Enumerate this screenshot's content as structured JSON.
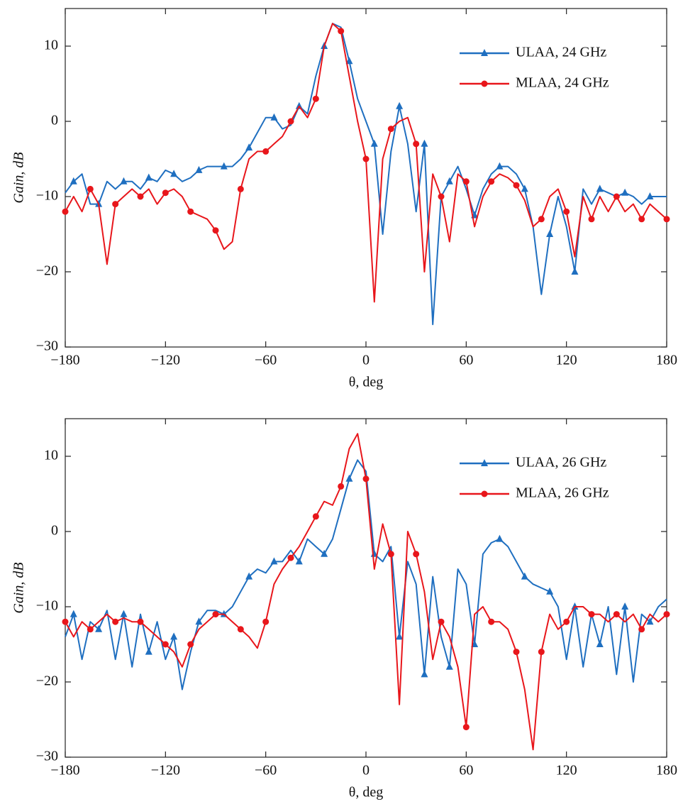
{
  "chart_data": [
    {
      "type": "line",
      "xlabel": "θ, deg",
      "ylabel": "Gain, dB",
      "legend": "upper right",
      "xlim": [
        -180,
        180
      ],
      "ylim": [
        -30,
        15
      ],
      "xticks": [
        {
          "value": -180,
          "label": "−180"
        },
        {
          "value": -120,
          "label": "−120"
        },
        {
          "value": -60,
          "label": "−60"
        },
        0,
        60,
        120,
        180
      ],
      "yticks": [
        {
          "value": -30,
          "label": "−30"
        },
        {
          "value": -20,
          "label": "−20"
        },
        {
          "value": -10,
          "label": "−10"
        },
        0,
        10
      ],
      "x": [
        -180,
        -175,
        -170,
        -165,
        -160,
        -155,
        -150,
        -145,
        -140,
        -135,
        -130,
        -125,
        -120,
        -115,
        -110,
        -105,
        -100,
        -95,
        -90,
        -85,
        -80,
        -75,
        -70,
        -65,
        -60,
        -55,
        -50,
        -45,
        -40,
        -35,
        -30,
        -25,
        -20,
        -15,
        -10,
        -5,
        0,
        5,
        10,
        15,
        20,
        25,
        30,
        35,
        40,
        45,
        50,
        55,
        60,
        65,
        70,
        75,
        80,
        85,
        90,
        95,
        100,
        105,
        110,
        115,
        120,
        125,
        130,
        135,
        140,
        145,
        150,
        155,
        160,
        165,
        170,
        175,
        180
      ],
      "series": [
        {
          "name": "ULAA, 24 GHz",
          "color": "#1f6fc0",
          "marker": "triangle",
          "values": [
            -9.5,
            -8,
            -7,
            -11,
            -11,
            -8,
            -9,
            -8,
            -8,
            -9,
            -7.5,
            -8,
            -6.5,
            -7,
            -8,
            -7.5,
            -6.5,
            -6,
            -6,
            -6,
            -6,
            -5,
            -3.5,
            -1.5,
            0.5,
            0.5,
            -1,
            -0.5,
            2,
            1,
            6,
            10,
            13,
            12.5,
            8,
            3,
            0,
            -3,
            -15,
            -4,
            2,
            -3,
            -12,
            -3,
            -27,
            -10,
            -8,
            -6,
            -9,
            -12.5,
            -9,
            -7,
            -6,
            -6,
            -7,
            -9,
            -14,
            -23,
            -15,
            -10,
            -14,
            -20,
            -9,
            -11,
            -9,
            -9.5,
            -10,
            -9.5,
            -10,
            -11,
            -10,
            -10,
            -10
          ]
        },
        {
          "name": "MLAA, 24 GHz",
          "color": "#e8161b",
          "marker": "circle",
          "values": [
            -12,
            -10,
            -12,
            -9,
            -11,
            -19,
            -11,
            -10,
            -9,
            -10,
            -9,
            -11,
            -9.5,
            -9,
            -10,
            -12,
            -12.5,
            -13,
            -14.5,
            -17,
            -16,
            -9,
            -5,
            -4,
            -4,
            -3,
            -2,
            0,
            2,
            0.5,
            3,
            10,
            13,
            12,
            6,
            0,
            -5,
            -24,
            -5,
            -1,
            0,
            0.5,
            -3,
            -20,
            -7,
            -10,
            -16,
            -7,
            -8,
            -14,
            -10,
            -8,
            -7,
            -7.5,
            -8.5,
            -10.5,
            -14,
            -13,
            -10,
            -9,
            -12,
            -18,
            -10,
            -13,
            -10,
            -12,
            -10,
            -12,
            -11,
            -13,
            -11,
            -12,
            -13
          ]
        }
      ]
    },
    {
      "type": "line",
      "xlabel": "θ, deg",
      "ylabel": "Gain, dB",
      "legend": "upper right",
      "xlim": [
        -180,
        180
      ],
      "ylim": [
        -30,
        15
      ],
      "xticks": [
        {
          "value": -180,
          "label": "−180"
        },
        {
          "value": -120,
          "label": "−120"
        },
        {
          "value": -60,
          "label": "−60"
        },
        0,
        60,
        120,
        180
      ],
      "yticks": [
        {
          "value": -30,
          "label": "−30"
        },
        {
          "value": -20,
          "label": "−20"
        },
        {
          "value": -10,
          "label": "−10"
        },
        0,
        10
      ],
      "x": [
        -180,
        -175,
        -170,
        -165,
        -160,
        -155,
        -150,
        -145,
        -140,
        -135,
        -130,
        -125,
        -120,
        -115,
        -110,
        -105,
        -100,
        -95,
        -90,
        -85,
        -80,
        -75,
        -70,
        -65,
        -60,
        -55,
        -50,
        -45,
        -40,
        -35,
        -30,
        -25,
        -20,
        -15,
        -10,
        -5,
        0,
        5,
        10,
        15,
        20,
        25,
        30,
        35,
        40,
        45,
        50,
        55,
        60,
        65,
        70,
        75,
        80,
        85,
        90,
        95,
        100,
        105,
        110,
        115,
        120,
        125,
        130,
        135,
        140,
        145,
        150,
        155,
        160,
        165,
        170,
        175,
        180
      ],
      "series": [
        {
          "name": "ULAA, 26 GHz",
          "color": "#1f6fc0",
          "marker": "triangle",
          "values": [
            -14,
            -11,
            -17,
            -12,
            -13,
            -10.5,
            -17,
            -11,
            -18,
            -11,
            -16,
            -12,
            -17,
            -14,
            -21,
            -16,
            -12,
            -10.5,
            -10.5,
            -11,
            -10,
            -8,
            -6,
            -5,
            -5.5,
            -4,
            -4,
            -2.5,
            -4,
            -1,
            -2,
            -3,
            -1,
            3,
            7,
            9.5,
            8,
            -3,
            -4,
            -2,
            -14,
            -4,
            -7,
            -19,
            -6,
            -14,
            -18,
            -5,
            -7,
            -15,
            -3,
            -1.5,
            -1,
            -2,
            -4,
            -6,
            -7,
            -7.5,
            -8,
            -10,
            -17,
            -10,
            -18,
            -11,
            -15,
            -10,
            -19,
            -10,
            -20,
            -11,
            -12,
            -10,
            -9
          ]
        },
        {
          "name": "MLAA, 26 GHz",
          "color": "#e8161b",
          "marker": "circle",
          "values": [
            -12,
            -14,
            -12,
            -13,
            -12,
            -11,
            -12,
            -11.5,
            -12,
            -12,
            -13,
            -14,
            -15,
            -16,
            -18,
            -15,
            -13,
            -12,
            -11,
            -11,
            -12,
            -13,
            -14,
            -15.5,
            -12,
            -7,
            -5,
            -3.5,
            -2,
            0,
            2,
            4,
            3.5,
            6,
            11,
            13,
            7,
            -5,
            1,
            -3,
            -23,
            0,
            -3,
            -8,
            -17,
            -12,
            -14,
            -18,
            -26,
            -11,
            -10,
            -12,
            -12,
            -13,
            -16,
            -21,
            -29,
            -16,
            -11,
            -13,
            -12,
            -10,
            -10,
            -11,
            -11,
            -12,
            -11,
            -12,
            -11,
            -13,
            -11,
            -12,
            -11
          ]
        }
      ]
    }
  ]
}
